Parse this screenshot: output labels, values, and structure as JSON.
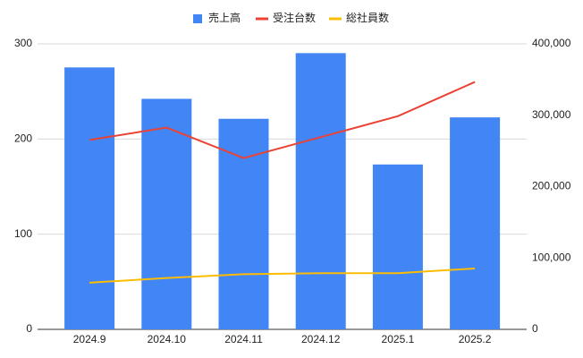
{
  "chart_data": {
    "type": "bar_line",
    "categories": [
      "2024.9",
      "2024.10",
      "2024.11",
      "2024.12",
      "2025.1",
      "2025.2"
    ],
    "series": [
      {
        "name": "売上高",
        "type": "bar",
        "axis": "y2",
        "color": "#4285f4",
        "values": [
          367000,
          323000,
          295000,
          387000,
          231000,
          297000
        ]
      },
      {
        "name": "受注台数",
        "type": "line",
        "color": "#ea4335",
        "values": [
          199,
          212,
          180,
          202,
          224,
          260
        ]
      },
      {
        "name": "総社員数",
        "type": "line",
        "color": "#fbbc04",
        "values": [
          49,
          54,
          58,
          59,
          59,
          64
        ]
      }
    ],
    "ylim": [
      0,
      300
    ],
    "yticks": [
      0,
      100,
      200,
      300
    ],
    "y2lim": [
      0,
      400000
    ],
    "y2ticks": [
      0,
      {
        "value": 100000,
        "label": "100,000"
      },
      {
        "value": 200000,
        "label": "200,000"
      },
      {
        "value": 300000,
        "label": "300,000"
      },
      {
        "value": 400000,
        "label": "400,000"
      }
    ],
    "grid": true,
    "legend": "top"
  }
}
